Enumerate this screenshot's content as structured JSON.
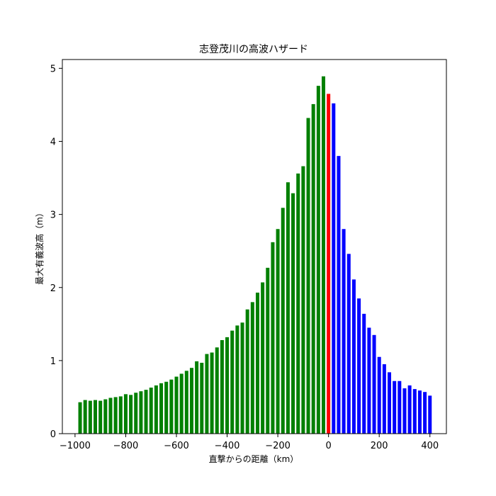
{
  "chart_data": {
    "type": "bar",
    "title": "志登茂川の高波ハザード",
    "xlabel": "直撃からの距離（km）",
    "ylabel": "最大有義波高（m）",
    "xlim": [
      -1050,
      465
    ],
    "ylim": [
      0,
      5.12
    ],
    "xticks": [
      -1000,
      -800,
      -600,
      -400,
      -200,
      0,
      200,
      400
    ],
    "xtick_labels": [
      "−1000",
      "−800",
      "−600",
      "−400",
      "−200",
      "0",
      "200",
      "400"
    ],
    "yticks": [
      0,
      1,
      2,
      3,
      4,
      5
    ],
    "ytick_labels": [
      "0",
      "1",
      "2",
      "3",
      "4",
      "5"
    ],
    "grid": false,
    "bar_width_km": 14,
    "series": [
      {
        "color": "#008000",
        "x": [
          -980,
          -960,
          -940,
          -920,
          -900,
          -880,
          -860,
          -840,
          -820,
          -800,
          -780,
          -760,
          -740,
          -720,
          -700,
          -680,
          -660,
          -640,
          -620,
          -600,
          -580,
          -560,
          -540,
          -520,
          -500,
          -480,
          -460,
          -440,
          -420,
          -400,
          -380,
          -360,
          -340,
          -320,
          -300,
          -280,
          -260,
          -240,
          -220,
          -200,
          -180,
          -160,
          -140,
          -120,
          -100,
          -80,
          -60,
          -40,
          -20
        ],
        "values": [
          0.43,
          0.46,
          0.45,
          0.46,
          0.45,
          0.47,
          0.49,
          0.5,
          0.51,
          0.54,
          0.53,
          0.56,
          0.58,
          0.6,
          0.63,
          0.66,
          0.69,
          0.71,
          0.74,
          0.78,
          0.82,
          0.86,
          0.9,
          0.99,
          0.97,
          1.09,
          1.11,
          1.18,
          1.28,
          1.32,
          1.41,
          1.48,
          1.52,
          1.7,
          1.8,
          1.93,
          2.07,
          2.27,
          2.62,
          2.8,
          3.09,
          3.44,
          3.29,
          3.56,
          3.66,
          4.32,
          4.51,
          4.76,
          4.89
        ]
      },
      {
        "color": "#ff0000",
        "x": [
          0
        ],
        "values": [
          4.65
        ]
      },
      {
        "color": "#0000ff",
        "x": [
          20,
          40,
          60,
          80,
          100,
          120,
          140,
          160,
          180,
          200,
          220,
          240,
          260,
          280,
          300,
          320,
          340,
          360,
          380,
          400
        ],
        "values": [
          4.52,
          3.8,
          2.8,
          2.46,
          2.11,
          1.85,
          1.64,
          1.45,
          1.35,
          1.05,
          0.95,
          0.84,
          0.72,
          0.72,
          0.62,
          0.66,
          0.61,
          0.59,
          0.57,
          0.52
        ]
      }
    ]
  }
}
